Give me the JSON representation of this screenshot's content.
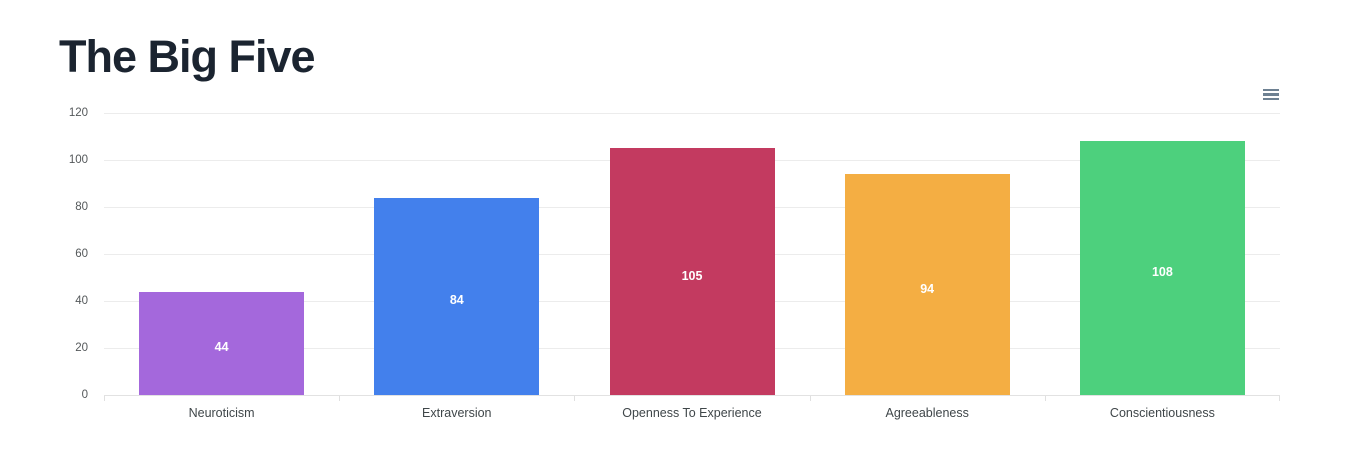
{
  "page": {
    "title": "The Big Five"
  },
  "toolbar": {
    "menu_icon": "hamburger-menu",
    "menu_icon_color": "#6e8192"
  },
  "chart_data": {
    "type": "bar",
    "title": "The Big Five",
    "categories": [
      "Neuroticism",
      "Extraversion",
      "Openness To Experience",
      "Agreeableness",
      "Conscientiousness"
    ],
    "values": [
      44,
      84,
      105,
      94,
      108
    ],
    "data_labels": [
      "44",
      "84",
      "105",
      "94",
      "108"
    ],
    "bar_colors": [
      "#a468dc",
      "#4380ec",
      "#c33a60",
      "#f4ae43",
      "#4dd07d"
    ],
    "xlabel": "",
    "ylabel": "",
    "ylim": [
      0,
      120
    ],
    "yticks": [
      0,
      20,
      40,
      60,
      80,
      100,
      120
    ],
    "grid": "horizontal-only",
    "legend": "none",
    "data_label_color": "#ffffff"
  }
}
